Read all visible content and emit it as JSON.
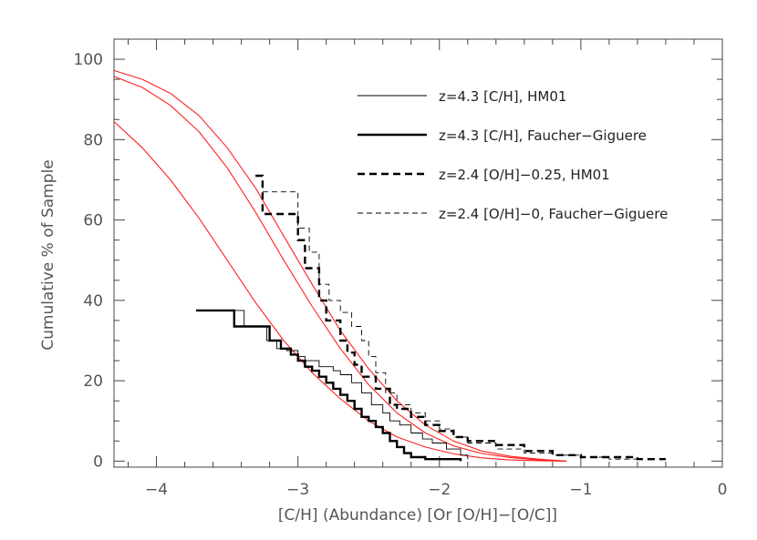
{
  "chart_data": {
    "type": "line",
    "xlabel": "[C/H] (Abundance) [Or [O/H]−[O/C]]",
    "ylabel": "Cumulative % of Sample",
    "xlim": [
      -4.3,
      0
    ],
    "ylim": [
      -1.5,
      105
    ],
    "x_ticks": [
      -4,
      -3,
      -2,
      -1,
      0
    ],
    "y_ticks": [
      0,
      20,
      40,
      60,
      80,
      100
    ],
    "x_tick_labels": [
      "−4",
      "−3",
      "−2",
      "−1",
      "0"
    ],
    "y_tick_labels": [
      "0",
      "20",
      "40",
      "60",
      "80",
      "100"
    ],
    "grid": false,
    "legend_position": "top-right",
    "colors": {
      "data": "#000000",
      "model": "#ff2020",
      "axes": "#444444",
      "text": "#555555"
    },
    "series": [
      {
        "name": "z=4.3 [C/H], HM01",
        "style": "thin-solid-step",
        "x": [
          -3.62,
          -3.38,
          -3.38,
          -3.28,
          -3.22,
          -3.15,
          -3.08,
          -3.0,
          -2.95,
          -2.85,
          -2.75,
          -2.7,
          -2.62,
          -2.55,
          -2.48,
          -2.4,
          -2.35,
          -2.28,
          -2.2,
          -2.12,
          -2.05,
          -1.95,
          -1.85,
          -1.8
        ],
        "y": [
          37.5,
          37.5,
          33.5,
          33.5,
          30,
          28,
          27.5,
          26,
          25,
          23.5,
          22.5,
          21.5,
          19.5,
          17,
          14,
          12,
          10,
          9,
          7,
          5.5,
          4.5,
          3,
          1.5,
          0.5
        ]
      },
      {
        "name": "z=4.3 [C/H], Faucher−Giguere",
        "style": "thick-solid-step",
        "x": [
          -3.72,
          -3.45,
          -3.45,
          -3.22,
          -3.2,
          -3.12,
          -3.05,
          -3.0,
          -2.95,
          -2.9,
          -2.85,
          -2.8,
          -2.75,
          -2.7,
          -2.65,
          -2.6,
          -2.55,
          -2.5,
          -2.45,
          -2.4,
          -2.35,
          -2.3,
          -2.25,
          -2.2,
          -2.1,
          -2.0,
          -1.85
        ],
        "y": [
          37.5,
          37.5,
          33.5,
          33.5,
          30,
          28,
          26.5,
          25,
          23.5,
          22.5,
          21,
          19.5,
          18,
          16.5,
          15,
          13,
          11,
          10,
          8.5,
          7,
          5,
          3.5,
          2,
          1,
          0.5,
          0.5,
          0
        ]
      },
      {
        "name": "z=2.4 [O/H]−0.25, HM01",
        "style": "thick-dashed-step",
        "x": [
          -3.3,
          -3.25,
          -3.25,
          -3.05,
          -3.0,
          -2.95,
          -2.85,
          -2.8,
          -2.7,
          -2.65,
          -2.6,
          -2.55,
          -2.45,
          -2.35,
          -2.3,
          -2.2,
          -2.1,
          -2.0,
          -1.9,
          -1.8,
          -1.6,
          -1.4,
          -1.2,
          -1.0,
          -0.8,
          -0.6,
          -0.4
        ],
        "y": [
          71,
          71,
          61.5,
          61.5,
          55,
          48,
          40,
          35,
          30,
          27,
          24,
          21,
          18,
          14,
          13,
          11,
          9,
          7.5,
          6,
          5,
          4,
          2.5,
          1.5,
          1,
          1,
          0.5,
          0.5
        ]
      },
      {
        "name": "z=2.4 [O/H]−0, Faucher−Giguere",
        "style": "thin-dashed-step",
        "x": [
          -3.25,
          -3.0,
          -3.0,
          -2.92,
          -2.85,
          -2.78,
          -2.7,
          -2.62,
          -2.55,
          -2.5,
          -2.45,
          -2.38,
          -2.3,
          -2.2,
          -2.1,
          -2.0,
          -1.9,
          -1.8,
          -1.6,
          -1.4,
          -1.2,
          -1.0,
          -0.8,
          -0.6
        ],
        "y": [
          67,
          67,
          58,
          52,
          44,
          40,
          37,
          33.5,
          30,
          26,
          22,
          17,
          14,
          12,
          10,
          8,
          6,
          4.5,
          3,
          2,
          1.5,
          1,
          0.5,
          0.5
        ]
      },
      {
        "name": "",
        "style": "model-curve",
        "x": [
          -4.3,
          -4.1,
          -3.9,
          -3.7,
          -3.5,
          -3.3,
          -3.1,
          -2.9,
          -2.7,
          -2.5,
          -2.3,
          -2.1,
          -1.9,
          -1.7,
          -1.5,
          -1.3,
          -1.1
        ],
        "y": [
          97.2,
          95,
          91.5,
          86,
          78,
          68,
          56,
          44,
          32.5,
          23,
          15,
          9,
          5,
          2.5,
          1.2,
          0.5,
          0
        ]
      },
      {
        "name": "",
        "style": "model-curve",
        "x": [
          -4.3,
          -4.1,
          -3.9,
          -3.7,
          -3.5,
          -3.3,
          -3.1,
          -2.9,
          -2.7,
          -2.5,
          -2.3,
          -2.1,
          -1.9,
          -1.7,
          -1.5,
          -1.3,
          -1.1
        ],
        "y": [
          95.7,
          93,
          88.5,
          82,
          73,
          62,
          50,
          38.5,
          28,
          19,
          12,
          7,
          3.8,
          1.9,
          0.9,
          0.3,
          0
        ]
      },
      {
        "name": "",
        "style": "model-curve",
        "x": [
          -4.3,
          -4.1,
          -3.9,
          -3.7,
          -3.5,
          -3.3,
          -3.1,
          -2.9,
          -2.7,
          -2.5,
          -2.3,
          -2.1,
          -1.9,
          -1.7,
          -1.5,
          -1.3,
          -1.1
        ],
        "y": [
          84.5,
          78,
          70,
          60.5,
          50,
          39.5,
          30,
          22,
          15.5,
          10,
          6,
          3.5,
          1.8,
          0.8,
          0.3,
          0.1,
          0
        ]
      }
    ]
  }
}
